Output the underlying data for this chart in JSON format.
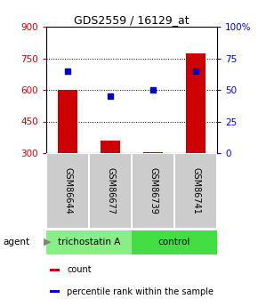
{
  "title": "GDS2559 / 16129_at",
  "samples": [
    "GSM86644",
    "GSM86677",
    "GSM86739",
    "GSM86741"
  ],
  "count_values": [
    600,
    360,
    305,
    775
  ],
  "count_base": 300,
  "percentile_values": [
    65,
    45,
    50,
    65
  ],
  "ylim_left": [
    300,
    900
  ],
  "ylim_right": [
    0,
    100
  ],
  "yticks_left": [
    300,
    450,
    600,
    750,
    900
  ],
  "yticks_right": [
    0,
    25,
    50,
    75,
    100
  ],
  "ytick_labels_right": [
    "0",
    "25",
    "50",
    "75",
    "100%"
  ],
  "bar_color": "#cc0000",
  "dot_color": "#0000cc",
  "groups": [
    {
      "label": "trichostatin A",
      "indices": [
        0,
        1
      ],
      "color": "#88ee88"
    },
    {
      "label": "control",
      "indices": [
        2,
        3
      ],
      "color": "#44dd44"
    }
  ],
  "agent_label": "agent",
  "legend": [
    {
      "label": "count",
      "color": "#cc0000"
    },
    {
      "label": "percentile rank within the sample",
      "color": "#0000cc"
    }
  ],
  "bg_color": "#ffffff",
  "bar_width": 0.45,
  "dotsize": 5,
  "grid_yticks": [
    450,
    600,
    750
  ]
}
